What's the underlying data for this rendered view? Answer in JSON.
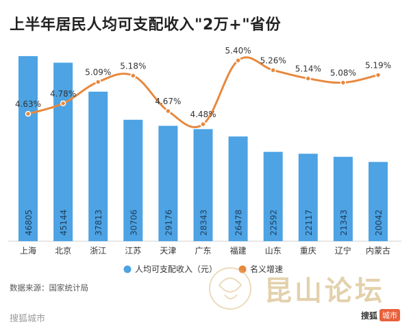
{
  "header": {
    "title": "上半年居民人均可支配收入\"2万+\"省份"
  },
  "chart_data": {
    "type": "bar",
    "categories": [
      "上海",
      "北京",
      "浙江",
      "江苏",
      "天津",
      "广东",
      "福建",
      "山东",
      "重庆",
      "辽宁",
      "内蒙古"
    ],
    "series": [
      {
        "name": "人均可支配收入（元）",
        "type": "bar",
        "color": "#4da3e3",
        "values": [
          46805,
          45144,
          37813,
          30706,
          29176,
          28343,
          26478,
          22592,
          22117,
          21343,
          20042
        ],
        "value_labels": [
          "46805",
          "45144",
          "37813",
          "30706",
          "29176",
          "28343",
          "26478",
          "22592",
          "22117",
          "21343",
          "20042"
        ]
      },
      {
        "name": "名义增速",
        "type": "line",
        "color": "#e8883d",
        "values": [
          4.63,
          4.78,
          5.09,
          5.18,
          4.67,
          4.48,
          5.4,
          5.26,
          5.14,
          5.08,
          5.19
        ],
        "value_labels": [
          "4.63%",
          "4.78%",
          "5.09%",
          "5.18%",
          "4.67%",
          "4.48%",
          "5.40%",
          "5.26%",
          "5.14%",
          "5.08%",
          "5.19%"
        ]
      }
    ],
    "bar_axis_range": [
      0,
      48000
    ],
    "line_axis_range": [
      3.8,
      5.6
    ],
    "grid": false,
    "legend_position": "bottom",
    "line_smooth": true
  },
  "footer": {
    "source": "数据来源：国家统计局",
    "brand": "搜狐城市",
    "sohu_logo_text": "搜狐",
    "sohu_logo_badge": "城市"
  },
  "watermark": {
    "text": "昆山论坛"
  }
}
